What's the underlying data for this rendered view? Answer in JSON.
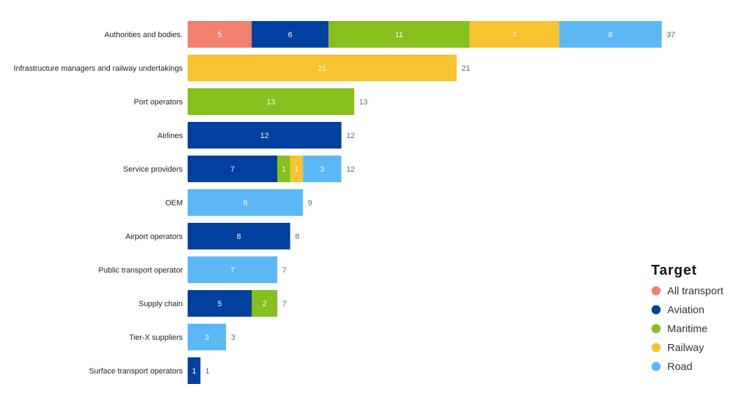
{
  "chart_data": {
    "type": "bar",
    "orientation": "horizontal",
    "stacked": true,
    "categories": [
      "Authorities and bodies.",
      "Infrastructure managers and railway undertakings",
      "Port operators",
      "Airlines",
      "Service providers",
      "OEM",
      "Airport operators",
      "Public transport operator",
      "Supply chain",
      "Tier-X suppliers",
      "Surface transport operators"
    ],
    "series": [
      {
        "name": "All transport",
        "color": "#f08070",
        "values": [
          5,
          0,
          0,
          0,
          0,
          0,
          0,
          0,
          0,
          0,
          0
        ]
      },
      {
        "name": "Aviation",
        "color": "#00409e",
        "values": [
          6,
          0,
          0,
          12,
          7,
          0,
          8,
          0,
          5,
          0,
          1
        ]
      },
      {
        "name": "Maritime",
        "color": "#86bf1e",
        "values": [
          11,
          0,
          13,
          0,
          1,
          0,
          0,
          0,
          2,
          0,
          0
        ]
      },
      {
        "name": "Railway",
        "color": "#f8c231",
        "values": [
          7,
          21,
          0,
          0,
          1,
          0,
          0,
          0,
          0,
          0,
          0
        ]
      },
      {
        "name": "Road",
        "color": "#5bb8f5",
        "values": [
          8,
          0,
          0,
          0,
          3,
          9,
          0,
          7,
          0,
          3,
          0
        ]
      }
    ],
    "totals": [
      37,
      21,
      13,
      12,
      12,
      9,
      8,
      7,
      7,
      3,
      1
    ],
    "legend": {
      "title": "Target",
      "placement": "right"
    },
    "grid": false,
    "xlim": [
      0,
      37
    ]
  }
}
